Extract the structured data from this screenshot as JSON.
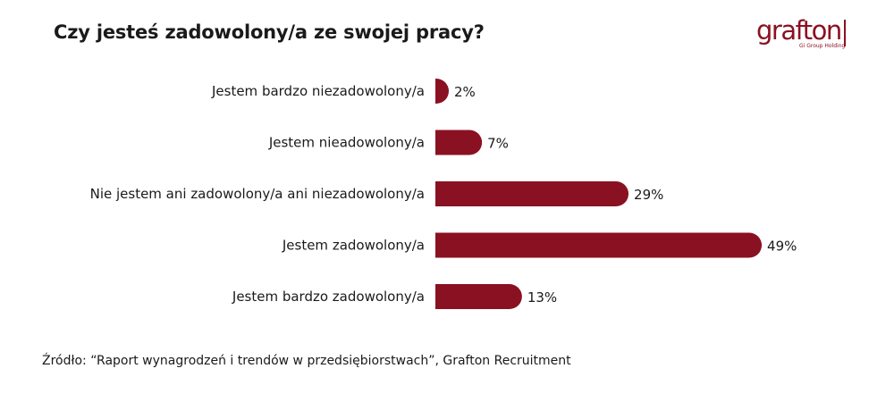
{
  "title": "Czy jesteś zadowolony/a ze swojej pracy?",
  "logo": {
    "word": "grafton",
    "subtitle": "Gi Group Holding"
  },
  "source": "Źródło: “Raport wynagrodzeń i trendów w przedsiębiorstwach”,  Grafton Recruitment",
  "colors": {
    "bar": "#8a1122",
    "text": "#1a1a1a",
    "brand": "#8a1122"
  },
  "chart_data": {
    "type": "bar",
    "orientation": "horizontal",
    "categories": [
      "Jestem bardzo niezadowolony/a",
      "Jestem nieadowolony/a",
      "Nie jestem ani zadowolony/a ani niezadowolony/a",
      "Jestem zadowolony/a",
      "Jestem bardzo zadowolony/a"
    ],
    "values": [
      2,
      7,
      29,
      49,
      13
    ],
    "value_labels": [
      "2%",
      "7%",
      "29%",
      "49%",
      "13%"
    ],
    "title": "Czy jesteś zadowolony/a ze swojej pracy?",
    "xlabel": "",
    "ylabel": "",
    "grid": false,
    "legend": "none"
  }
}
